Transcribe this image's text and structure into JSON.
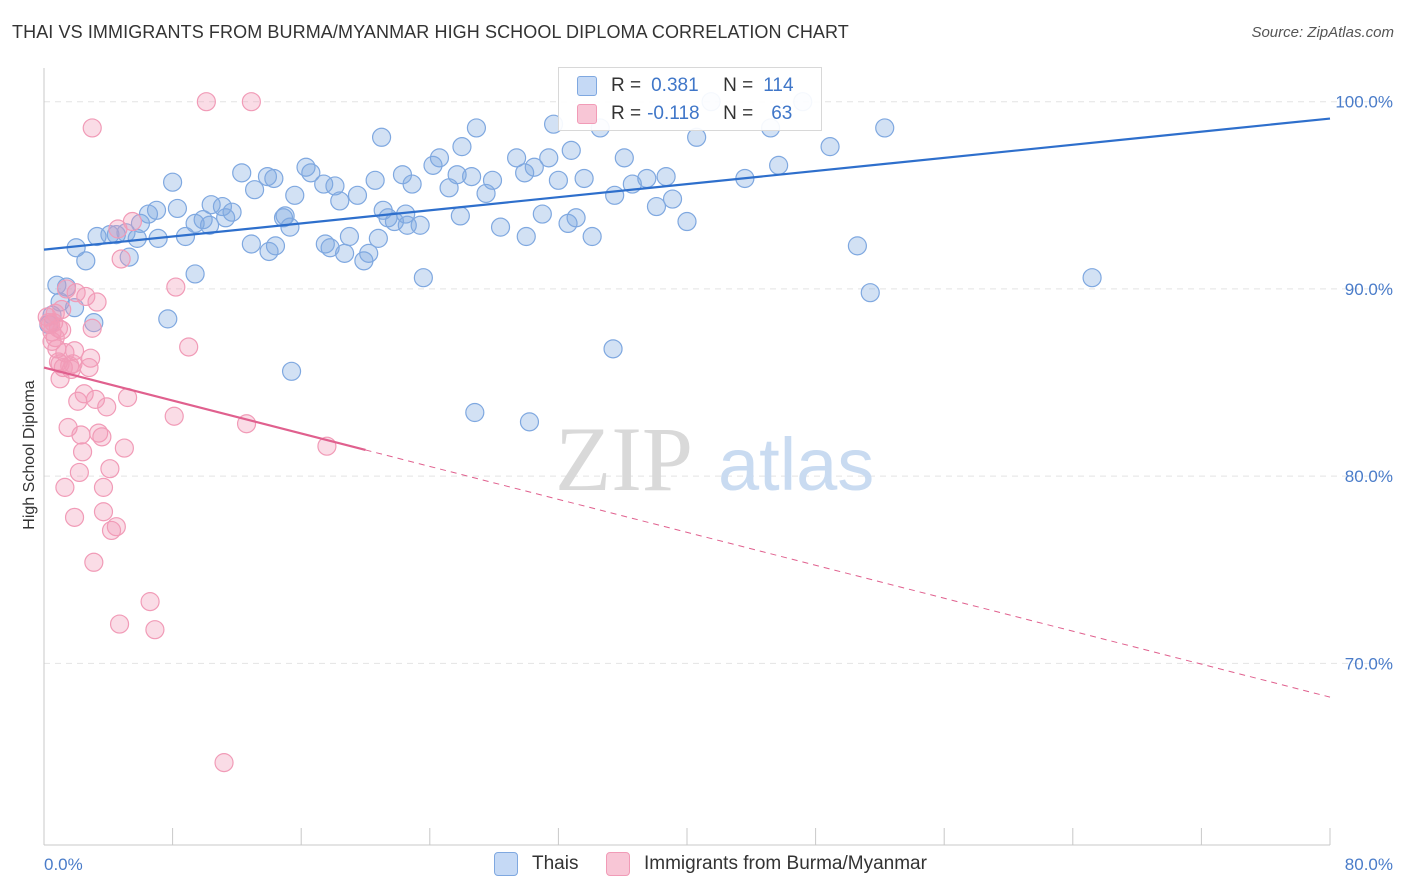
{
  "title": "THAI VS IMMIGRANTS FROM BURMA/MYANMAR HIGH SCHOOL DIPLOMA CORRELATION CHART",
  "source": "Source: ZipAtlas.com",
  "watermark": {
    "zip": "ZIP",
    "atlas": "atlas"
  },
  "legend": {
    "rows": [
      {
        "r_label": "R =",
        "r_value": "0.381",
        "n_label": "N =",
        "n_value": "114"
      },
      {
        "r_label": "R =",
        "r_value": "-0.118",
        "n_label": "N =",
        "n_value": "63"
      }
    ]
  },
  "colors": {
    "thai": "#7fa8e0",
    "thai_line": "#2e6fcc",
    "burma": "#f19bb7",
    "burma_line": "#e0608e",
    "tick": "#4a7cc9"
  },
  "chart_data": {
    "type": "scatter",
    "title": "THAI VS IMMIGRANTS FROM BURMA/MYANMAR HIGH SCHOOL DIPLOMA CORRELATION CHART",
    "xlabel": "",
    "ylabel": "High School Diploma",
    "xlim": [
      0,
      80
    ],
    "ylim": [
      60.3,
      101.8
    ],
    "x_tick_labels": [
      "0.0%",
      "80.0%"
    ],
    "y_tick_labels": [
      "100.0%",
      "90.0%",
      "80.0%",
      "70.0%"
    ],
    "y_ticks": [
      100,
      90,
      80,
      70
    ],
    "grid": true,
    "legend_position": "top-center",
    "series": [
      {
        "name": "Thais",
        "r": 0.381,
        "n": 114,
        "trend": {
          "x": [
            0,
            80
          ],
          "y": [
            92.1,
            99.1
          ]
        },
        "points": [
          [
            0.3,
            88.1
          ],
          [
            0.5,
            88.6
          ],
          [
            0.8,
            90.2
          ],
          [
            1.0,
            89.3
          ],
          [
            1.4,
            90.1
          ],
          [
            2.0,
            92.2
          ],
          [
            2.6,
            91.5
          ],
          [
            3.3,
            92.8
          ],
          [
            4.5,
            92.9
          ],
          [
            5.3,
            91.7
          ],
          [
            4.1,
            92.9
          ],
          [
            5.1,
            93.0
          ],
          [
            6.0,
            93.5
          ],
          [
            5.8,
            92.7
          ],
          [
            7.0,
            94.2
          ],
          [
            6.5,
            94.0
          ],
          [
            8.0,
            95.7
          ],
          [
            7.1,
            92.7
          ],
          [
            8.3,
            94.3
          ],
          [
            8.8,
            92.8
          ],
          [
            9.4,
            93.5
          ],
          [
            9.9,
            93.7
          ],
          [
            10.3,
            93.4
          ],
          [
            10.4,
            94.5
          ],
          [
            11.1,
            94.4
          ],
          [
            11.7,
            94.1
          ],
          [
            11.3,
            93.8
          ],
          [
            12.3,
            96.2
          ],
          [
            13.1,
            95.3
          ],
          [
            13.9,
            96.0
          ],
          [
            14.3,
            95.9
          ],
          [
            14.9,
            93.8
          ],
          [
            14.4,
            92.3
          ],
          [
            15.3,
            93.3
          ],
          [
            15.6,
            95.0
          ],
          [
            16.3,
            96.5
          ],
          [
            16.6,
            96.2
          ],
          [
            17.4,
            95.6
          ],
          [
            17.5,
            92.4
          ],
          [
            17.8,
            92.2
          ],
          [
            18.1,
            95.5
          ],
          [
            18.4,
            94.7
          ],
          [
            18.7,
            91.9
          ],
          [
            19.0,
            92.8
          ],
          [
            19.5,
            95.0
          ],
          [
            19.9,
            91.5
          ],
          [
            20.2,
            91.9
          ],
          [
            20.6,
            95.8
          ],
          [
            20.8,
            92.7
          ],
          [
            21.1,
            94.2
          ],
          [
            21.4,
            93.8
          ],
          [
            21.8,
            93.6
          ],
          [
            22.3,
            96.1
          ],
          [
            22.5,
            94.0
          ],
          [
            22.9,
            95.6
          ],
          [
            23.4,
            93.4
          ],
          [
            23.6,
            90.6
          ],
          [
            24.2,
            96.6
          ],
          [
            24.6,
            97.0
          ],
          [
            25.2,
            95.4
          ],
          [
            25.7,
            96.1
          ],
          [
            26.0,
            97.6
          ],
          [
            25.9,
            93.9
          ],
          [
            26.9,
            98.6
          ],
          [
            26.6,
            96.0
          ],
          [
            27.5,
            95.1
          ],
          [
            27.9,
            95.8
          ],
          [
            28.4,
            93.3
          ],
          [
            29.4,
            97.0
          ],
          [
            29.9,
            96.2
          ],
          [
            30.5,
            96.5
          ],
          [
            31.0,
            94.0
          ],
          [
            31.4,
            97.0
          ],
          [
            32.0,
            95.8
          ],
          [
            32.6,
            93.5
          ],
          [
            33.1,
            93.8
          ],
          [
            33.6,
            95.9
          ],
          [
            34.1,
            92.8
          ],
          [
            34.6,
            98.6
          ],
          [
            35.5,
            95.0
          ],
          [
            36.1,
            97.0
          ],
          [
            36.6,
            95.6
          ],
          [
            37.5,
            95.9
          ],
          [
            38.1,
            94.4
          ],
          [
            38.7,
            96.0
          ],
          [
            39.1,
            94.8
          ],
          [
            41.5,
            100.0
          ],
          [
            43.6,
            95.9
          ],
          [
            45.2,
            98.6
          ],
          [
            45.7,
            96.6
          ],
          [
            47.2,
            100.0
          ],
          [
            48.9,
            97.6
          ],
          [
            50.6,
            92.3
          ],
          [
            51.4,
            89.8
          ],
          [
            65.2,
            90.6
          ],
          [
            52.3,
            98.6
          ],
          [
            40.6,
            98.1
          ],
          [
            26.8,
            83.4
          ],
          [
            30.2,
            82.9
          ],
          [
            35.4,
            86.8
          ],
          [
            15.4,
            85.6
          ],
          [
            7.7,
            88.4
          ],
          [
            9.4,
            90.8
          ],
          [
            3.1,
            88.2
          ],
          [
            1.9,
            89.0
          ],
          [
            12.9,
            92.4
          ],
          [
            22.6,
            93.4
          ],
          [
            30.0,
            92.8
          ],
          [
            40.0,
            93.6
          ],
          [
            14.0,
            92.0
          ],
          [
            32.8,
            97.4
          ],
          [
            31.7,
            98.8
          ],
          [
            15.0,
            93.9
          ],
          [
            21.0,
            98.1
          ]
        ]
      },
      {
        "name": "Immigrants from Burma/Myanmar",
        "r": -0.118,
        "n": 63,
        "trend": {
          "x": [
            0,
            20
          ],
          "y": [
            85.8,
            81.4
          ]
        },
        "trend_dashed": {
          "x": [
            20,
            80
          ],
          "y": [
            81.4,
            68.2
          ]
        },
        "points": [
          [
            0.2,
            88.5
          ],
          [
            0.3,
            88.2
          ],
          [
            0.4,
            88.1
          ],
          [
            0.5,
            87.7
          ],
          [
            0.6,
            88.2
          ],
          [
            0.7,
            87.4
          ],
          [
            0.8,
            86.8
          ],
          [
            0.9,
            86.1
          ],
          [
            1.0,
            85.2
          ],
          [
            1.1,
            87.8
          ],
          [
            1.2,
            85.8
          ],
          [
            1.3,
            86.6
          ],
          [
            1.4,
            90.0
          ],
          [
            1.6,
            85.9
          ],
          [
            1.7,
            85.7
          ],
          [
            1.9,
            86.7
          ],
          [
            2.0,
            89.8
          ],
          [
            2.1,
            84.0
          ],
          [
            2.2,
            80.2
          ],
          [
            2.3,
            82.2
          ],
          [
            2.5,
            84.4
          ],
          [
            2.6,
            89.6
          ],
          [
            2.8,
            85.8
          ],
          [
            3.0,
            87.9
          ],
          [
            3.2,
            84.1
          ],
          [
            3.1,
            75.4
          ],
          [
            3.3,
            89.3
          ],
          [
            3.6,
            82.1
          ],
          [
            3.7,
            79.4
          ],
          [
            3.7,
            78.1
          ],
          [
            3.9,
            83.7
          ],
          [
            4.1,
            80.4
          ],
          [
            4.2,
            77.1
          ],
          [
            4.5,
            77.3
          ],
          [
            4.6,
            93.2
          ],
          [
            4.8,
            91.6
          ],
          [
            5.0,
            81.5
          ],
          [
            5.2,
            84.2
          ],
          [
            5.5,
            93.6
          ],
          [
            6.6,
            73.3
          ],
          [
            6.9,
            71.8
          ],
          [
            8.2,
            90.1
          ],
          [
            8.1,
            83.2
          ],
          [
            9.0,
            86.9
          ],
          [
            10.1,
            100.0
          ],
          [
            12.6,
            82.8
          ],
          [
            12.9,
            100.0
          ],
          [
            11.2,
            64.7
          ],
          [
            17.6,
            81.6
          ],
          [
            3.0,
            98.6
          ],
          [
            0.7,
            88.7
          ],
          [
            1.5,
            82.6
          ],
          [
            2.4,
            81.3
          ],
          [
            4.7,
            72.1
          ],
          [
            1.1,
            88.9
          ],
          [
            0.9,
            87.9
          ],
          [
            1.8,
            86.0
          ],
          [
            2.9,
            86.3
          ],
          [
            1.3,
            79.4
          ],
          [
            1.9,
            77.8
          ],
          [
            3.4,
            82.3
          ],
          [
            0.5,
            87.2
          ],
          [
            1.0,
            86.0
          ]
        ]
      }
    ]
  }
}
